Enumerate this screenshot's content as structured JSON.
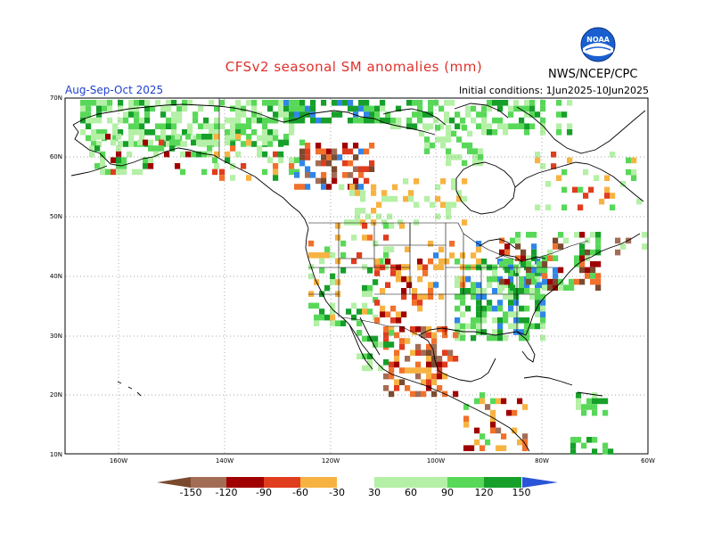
{
  "title": "CFSv2 seasonal SM anomalies (mm)",
  "agency": "NWS/NCEP/CPC",
  "season": "Aug-Sep-Oct 2025",
  "initial_conditions": "Initial conditions: 1Jun2025-10Jun2025",
  "logo": {
    "icon": "noaa-logo-icon",
    "text": "NOAA"
  },
  "axes": {
    "lat_labels": [
      "70N",
      "60N",
      "50N",
      "40N",
      "30N",
      "20N",
      "10N"
    ],
    "lon_labels": [
      "160W",
      "140W",
      "120W",
      "100W",
      "80W",
      "60W"
    ]
  },
  "colorbar": {
    "labels": [
      "-150",
      "-120",
      "-90",
      "-60",
      "-30",
      "30",
      "60",
      "90",
      "120",
      "150"
    ],
    "colors": [
      "#7b4a2e",
      "#a36d55",
      "#a00000",
      "#e03c1e",
      "#f2702a",
      "#f7b342",
      "#ffffff",
      "#b4f0a6",
      "#58d858",
      "#16a02a",
      "#2f86e8",
      "#2b55d8"
    ]
  },
  "colors": {
    "dry_dark": "#7b4a2e",
    "dry_brown": "#a36d55",
    "dry_red": "#a00000",
    "dry_orange_red": "#e03c1e",
    "dry_orange": "#f2702a",
    "dry_yellow": "#f7b342",
    "wet_light": "#b4f0a6",
    "wet_mid": "#58d858",
    "wet_green": "#16a02a",
    "wet_blue": "#2f86e8",
    "wet_dark_blue": "#2b55d8",
    "title_red": "#e0302a",
    "season_blue": "#2040d0"
  }
}
